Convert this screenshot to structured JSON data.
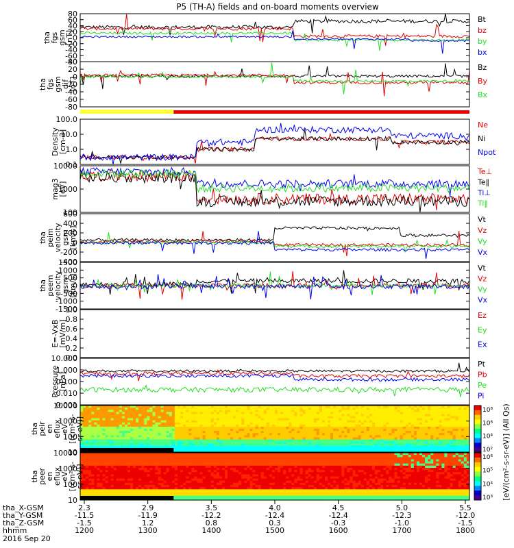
{
  "title": "P5 (TH-A) fields and on-board moments overview",
  "colors": {
    "black": "#000000",
    "red": "#dd0000",
    "green": "#22dd22",
    "blue": "#0000ee",
    "yellow": "#ffff33",
    "bar_red": "#ee0000"
  },
  "chart_data": [
    {
      "type": "line",
      "ylabel": [
        "tha",
        "fgs",
        "gsm",
        "[nT]"
      ],
      "ylim": [
        -80,
        80
      ],
      "yticks": [
        "80",
        "60",
        "40",
        "20",
        "0",
        "-20",
        "-40",
        "-60",
        "-80"
      ],
      "series": [
        {
          "name": "Bt",
          "color": "black",
          "base": 35,
          "noise": 6,
          "step": [
            [
              0.55,
              55
            ]
          ],
          "spikes": 1.0
        },
        {
          "name": "bz",
          "color": "red",
          "base": 30,
          "noise": 5,
          "step": [
            [
              0.55,
              5
            ]
          ],
          "spikes": 1.0
        },
        {
          "name": "by",
          "color": "green",
          "base": 15,
          "noise": 4,
          "step": [
            [
              0.55,
              -8
            ]
          ],
          "spikes": 0.6
        },
        {
          "name": "bx",
          "color": "blue",
          "base": 3,
          "noise": 3,
          "step": [
            [
              0.55,
              -5
            ],
            [
              0.85,
              -10
            ]
          ],
          "spikes": 0.5
        }
      ]
    },
    {
      "type": "line",
      "ylabel": [
        "tha",
        "fgs",
        "gsm",
        "dif",
        "[nT]"
      ],
      "ylim": [
        -90,
        50
      ],
      "yticks": [
        "40",
        "20",
        "0",
        "-20",
        "-40",
        "-60",
        "-80"
      ],
      "series": [
        {
          "name": "Bz",
          "color": "black",
          "base": 5,
          "noise": 4,
          "step": [],
          "spikes": 1.0
        },
        {
          "name": "By",
          "color": "red",
          "base": 8,
          "noise": 4,
          "step": [
            [
              0.55,
              -15
            ]
          ],
          "spikes": 1.5
        },
        {
          "name": "Bx",
          "color": "green",
          "base": 3,
          "noise": 3,
          "step": [
            [
              0.55,
              -10
            ]
          ],
          "spikes": 1.5
        }
      ]
    },
    {
      "type": "area",
      "ylabel": [
        "Density",
        "[cm-3]"
      ],
      "log": true,
      "ylim": [
        0.1,
        100
      ],
      "yticks": [
        "100.0",
        "10.0",
        "1.0",
        "0.1"
      ],
      "series": [
        {
          "name": "Ne",
          "color": "red",
          "base": 0.3,
          "noise": 0.2,
          "step": [
            [
              0.3,
              1.0
            ],
            [
              0.45,
              5
            ],
            [
              0.8,
              3
            ]
          ],
          "spikes": 0.8
        },
        {
          "name": "Ni",
          "color": "black",
          "base": 0.3,
          "noise": 0.2,
          "step": [
            [
              0.3,
              1.0
            ],
            [
              0.45,
              5
            ],
            [
              0.8,
              3
            ]
          ],
          "spikes": 0.8
        },
        {
          "name": "Npot",
          "color": "blue",
          "base": 0.3,
          "noise": 0.3,
          "step": [
            [
              0.3,
              3
            ],
            [
              0.45,
              20
            ],
            [
              0.8,
              8
            ]
          ],
          "spikes": 0.8
        }
      ]
    },
    {
      "type": "line",
      "ylabel": [
        "mag3",
        "[eV]"
      ],
      "log": true,
      "ylim": [
        40,
        10000
      ],
      "yticks": [
        "10000",
        "1000",
        "100"
      ],
      "series": [
        {
          "name": "Te⊥",
          "color": "red",
          "base": 3000,
          "noise": 0.4,
          "step": [
            [
              0.3,
              200
            ]
          ],
          "spikes": 0.6
        },
        {
          "name": "Te‖",
          "color": "black",
          "base": 2500,
          "noise": 0.4,
          "step": [
            [
              0.3,
              150
            ]
          ],
          "spikes": 0.6
        },
        {
          "name": "Ti⊥",
          "color": "blue",
          "base": 5000,
          "noise": 0.3,
          "step": [
            [
              0.3,
              1200
            ]
          ],
          "spikes": 0.4
        },
        {
          "name": "Ti‖",
          "color": "green",
          "base": 4000,
          "noise": 0.3,
          "step": [
            [
              0.3,
              700
            ]
          ],
          "spikes": 0.4
        }
      ]
    },
    {
      "type": "line",
      "ylabel": [
        "tha",
        "peim",
        "velocity",
        "gsm",
        "[km/s]"
      ],
      "ylim": [
        -400,
        600
      ],
      "yticks": [
        "600",
        "400",
        "200",
        "0",
        "-200",
        "-400"
      ],
      "series": [
        {
          "name": "Vt",
          "color": "black",
          "base": 50,
          "noise": 30,
          "step": [
            [
              0.5,
              300
            ],
            [
              0.82,
              150
            ]
          ],
          "spikes": 0.4
        },
        {
          "name": "Vz",
          "color": "red",
          "base": 20,
          "noise": 30,
          "step": [
            [
              0.5,
              -50
            ]
          ],
          "spikes": 0.4
        },
        {
          "name": "Vy",
          "color": "green",
          "base": 0,
          "noise": 30,
          "step": [
            [
              0.5,
              -80
            ]
          ],
          "spikes": 0.4
        },
        {
          "name": "Vx",
          "color": "blue",
          "base": -10,
          "noise": 30,
          "step": [
            [
              0.5,
              -150
            ]
          ],
          "spikes": 0.4
        }
      ]
    },
    {
      "type": "line",
      "ylabel": [
        "tha",
        "peem",
        "velocity",
        "gsm",
        "[km/s]"
      ],
      "ylim": [
        -1500,
        1500
      ],
      "yticks": [
        "1500",
        "1000",
        "500",
        "0",
        "-500",
        "-1000",
        "-1500"
      ],
      "series": [
        {
          "name": "Vt",
          "color": "black",
          "base": 100,
          "noise": 150,
          "step": [
            [
              0.3,
              300
            ]
          ],
          "spikes": 2.5
        },
        {
          "name": "Vz",
          "color": "red",
          "base": 0,
          "noise": 150,
          "step": [],
          "spikes": 1.5
        },
        {
          "name": "Vy",
          "color": "green",
          "base": 0,
          "noise": 120,
          "step": [],
          "spikes": 1.2
        },
        {
          "name": "Vx",
          "color": "blue",
          "base": -50,
          "noise": 150,
          "step": [],
          "spikes": 2.0
        }
      ]
    },
    {
      "type": "line",
      "ylabel": [
        "E=-VxB",
        "[mV/m]"
      ],
      "ylim": [
        0,
        1
      ],
      "yticks": [
        "1.0",
        "0.8",
        "0.6",
        "0.4",
        "0.2",
        "0.0"
      ],
      "series": [
        {
          "name": "Ez",
          "color": "red"
        },
        {
          "name": "Ey",
          "color": "green"
        },
        {
          "name": "Ex",
          "color": "blue"
        }
      ]
    },
    {
      "type": "line",
      "ylabel": [
        "Pressure",
        "[nPa]"
      ],
      "log": true,
      "ylim": [
        0.001,
        10
      ],
      "yticks": [
        "10.000",
        "1.000",
        "0.100",
        "0.010",
        "0.001"
      ],
      "series": [
        {
          "name": "Pt",
          "color": "black",
          "base": 0.8,
          "noise": 0.15,
          "step": [],
          "spikes": 0.3
        },
        {
          "name": "Pb",
          "color": "red",
          "base": 0.5,
          "noise": 0.2,
          "step": [
            [
              0.55,
              0.3
            ]
          ],
          "spikes": 0.5
        },
        {
          "name": "Pe",
          "color": "green",
          "base": 0.02,
          "noise": 0.3,
          "step": [],
          "spikes": 0.3
        },
        {
          "name": "Pi",
          "color": "blue",
          "base": 0.3,
          "noise": 0.2,
          "step": [
            [
              0.55,
              0.15
            ]
          ],
          "spikes": 0.4
        }
      ]
    },
    {
      "type": "heatmap",
      "ylabel": [
        "tha",
        "peir",
        "en",
        "eflux",
        "eV",
        "[(cm²-s-",
        "sr-eV)]"
      ],
      "log": true,
      "ylim": [
        5,
        30000
      ],
      "yticks": [
        "10000",
        "1000",
        "100",
        "10"
      ]
    },
    {
      "type": "heatmap",
      "ylabel": [
        "tha",
        "peer",
        "en",
        "eflux",
        "eV",
        "[(cm²-s-",
        "sr-eV)]"
      ],
      "log": true,
      "ylim": [
        5,
        30000
      ],
      "yticks": [
        "10000",
        "1000",
        "100",
        "10"
      ]
    }
  ],
  "bar_label": "",
  "colorbar": {
    "label": "[eV/(cm²-s-sr-eV)] (All Qs)",
    "ticks_top": [
      "10⁸",
      "10⁶",
      "10⁴",
      "10²"
    ],
    "ticks_bottom": [
      "10⁶",
      "10⁵",
      "10⁴",
      "10³"
    ]
  },
  "xaxis": {
    "rows": [
      {
        "label": "tha_X-GSM",
        "values": [
          "2.3",
          "2.9",
          "3.5",
          "4.0",
          "4.5",
          "5.0",
          "5.5"
        ]
      },
      {
        "label": "tha_Y-GSM",
        "values": [
          "-11.5",
          "-11.9",
          "-12.2",
          "-12.4",
          "-12.4",
          "-12.3",
          "-12.0"
        ]
      },
      {
        "label": "tha_Z-GSM",
        "values": [
          "-1.5",
          "1.2",
          "0.8",
          "0.3",
          "-0.3",
          "-1.0",
          "-1.5"
        ]
      },
      {
        "label": "hhmm",
        "values": [
          "1200",
          "1300",
          "1400",
          "1500",
          "1600",
          "1700",
          "1800"
        ]
      }
    ],
    "date": "2016 Sep 20"
  }
}
